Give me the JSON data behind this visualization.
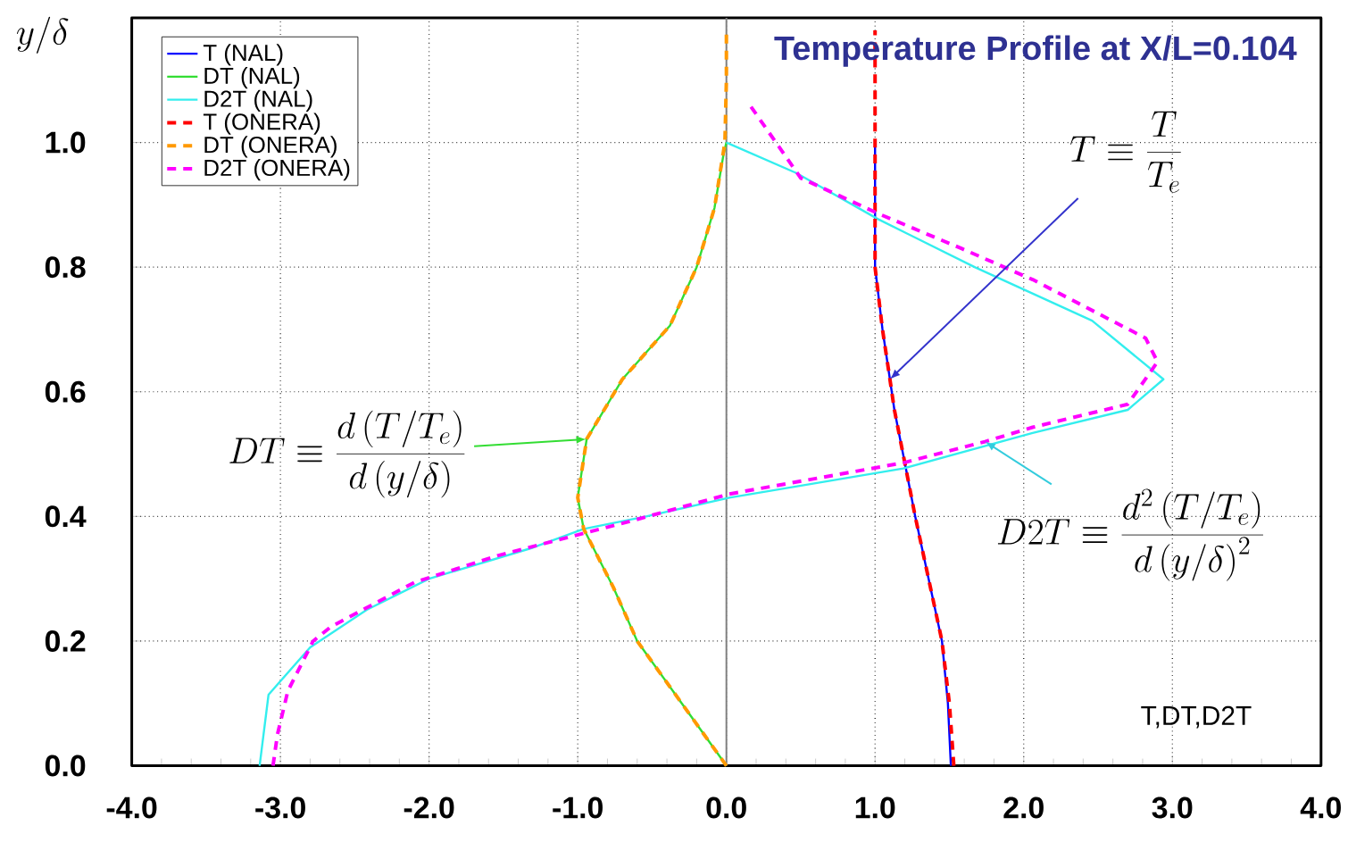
{
  "chart_data": {
    "type": "line",
    "title": "Temperature Profile at X/L=0.104",
    "ylabel": "y/\\delta",
    "xlabel": "T,DT,D2T",
    "xlim": [
      -4,
      4
    ],
    "ylim": [
      0,
      1.2
    ],
    "xticks": [
      {
        "value": -4,
        "label": "-4.0"
      },
      {
        "value": -3,
        "label": "-3.0"
      },
      {
        "value": -2,
        "label": "-2.0"
      },
      {
        "value": -1,
        "label": "-1.0"
      },
      {
        "value": 0,
        "label": "0.0"
      },
      {
        "value": 1,
        "label": "1.0"
      },
      {
        "value": 2,
        "label": "2.0"
      },
      {
        "value": 3,
        "label": "3.0"
      },
      {
        "value": 4,
        "label": "4.0"
      }
    ],
    "yticks": [
      {
        "value": 0,
        "label": "0.0"
      },
      {
        "value": 0.2,
        "label": "0.2"
      },
      {
        "value": 0.4,
        "label": "0.4"
      },
      {
        "value": 0.6,
        "label": "0.6"
      },
      {
        "value": 0.8,
        "label": "0.8"
      },
      {
        "value": 1.0,
        "label": "1.0"
      }
    ],
    "grid": true,
    "legend": "top left",
    "marker": "none",
    "ref_lines": [
      {
        "axis": "x",
        "value": 0,
        "color": "#808080"
      }
    ],
    "annotations": [
      {
        "text": "DT \\equiv \\frac{d\\left(T/T_e\\right)}{d\\left(y/\\delta\\right)}",
        "x": -0.94,
        "y": 0.524
      },
      {
        "text": "T \\equiv \\frac{T}{T_e}",
        "x": 1.1,
        "y": 0.62
      },
      {
        "text": "D2T \\equiv \\frac{d^2\\left(T/T_e\\right)}{d\\left(y/\\delta\\right)^2}",
        "x": 1.74,
        "y": 0.52
      }
    ],
    "series": [
      {
        "name": "T (NAL)",
        "color": "#0000ff",
        "line_style": "solid",
        "x": [
          1.51,
          1.49,
          1.45,
          1.36,
          1.27,
          1.2,
          1.13,
          1.1,
          1.05,
          1.0,
          1.0,
          1.0
        ],
        "values": [
          0,
          0.1,
          0.2,
          0.3,
          0.4,
          0.486,
          0.571,
          0.62,
          0.7,
          0.8,
          0.9,
          1.0
        ]
      },
      {
        "name": "DT (NAL)",
        "color": "#33dd33",
        "line_style": "solid",
        "x": [
          0,
          -0.3,
          -0.6,
          -0.76,
          -0.96,
          -1.0,
          -0.94,
          -0.7,
          -0.38,
          -0.2,
          -0.08,
          -0.02,
          0
        ],
        "values": [
          0,
          0.1,
          0.2,
          0.286,
          0.38,
          0.43,
          0.524,
          0.62,
          0.706,
          0.8,
          0.895,
          0.98,
          1.0
        ]
      },
      {
        "name": "D2T (NAL)",
        "color": "#33eeee",
        "line_style": "solid",
        "x": [
          -3.14,
          -3.08,
          -2.8,
          -2.42,
          -2.0,
          -1.3,
          -0.96,
          -0.54,
          0.02,
          1.19,
          2.06,
          2.7,
          2.94,
          2.46,
          1.67,
          1.02,
          0.47,
          0
        ],
        "values": [
          0,
          0.114,
          0.19,
          0.25,
          0.3,
          0.35,
          0.38,
          0.4,
          0.43,
          0.477,
          0.534,
          0.571,
          0.62,
          0.714,
          0.8,
          0.877,
          0.951,
          1.0
        ]
      },
      {
        "name": "T (ONERA)",
        "color": "#ff0000",
        "line_style": "dashed",
        "x": [
          1.53,
          1.5,
          1.45,
          1.36,
          1.27,
          1.2,
          1.13,
          1.1,
          1.05,
          1.0,
          1.0,
          1.0,
          1.0,
          1.0
        ],
        "values": [
          0,
          0.1,
          0.2,
          0.3,
          0.4,
          0.486,
          0.571,
          0.62,
          0.7,
          0.8,
          0.9,
          1.0,
          1.1,
          1.18
        ]
      },
      {
        "name": "DT (ONERA)",
        "color": "#ff9900",
        "line_style": "dashed",
        "x": [
          0,
          -0.3,
          -0.6,
          -0.76,
          -0.96,
          -1.0,
          -0.94,
          -0.7,
          -0.38,
          -0.2,
          -0.08,
          -0.01,
          0,
          0
        ],
        "values": [
          0,
          0.1,
          0.2,
          0.286,
          0.38,
          0.43,
          0.524,
          0.62,
          0.706,
          0.8,
          0.895,
          1.0,
          1.1,
          1.18
        ]
      },
      {
        "name": "D2T (ONERA)",
        "color": "#ff00ff",
        "line_style": "dashed",
        "x": [
          -3.05,
          -3.02,
          -2.95,
          -2.78,
          -2.66,
          -2.1,
          -1.54,
          -0.62,
          0.02,
          1.19,
          1.74,
          2.06,
          2.7,
          2.9,
          2.82,
          2.06,
          1.58,
          1.02,
          0.5,
          0.14
        ],
        "values": [
          0,
          0.05,
          0.12,
          0.2,
          0.223,
          0.294,
          0.337,
          0.394,
          0.436,
          0.486,
          0.52,
          0.543,
          0.58,
          0.648,
          0.686,
          0.78,
          0.83,
          0.886,
          0.943,
          1.066
        ]
      }
    ]
  }
}
